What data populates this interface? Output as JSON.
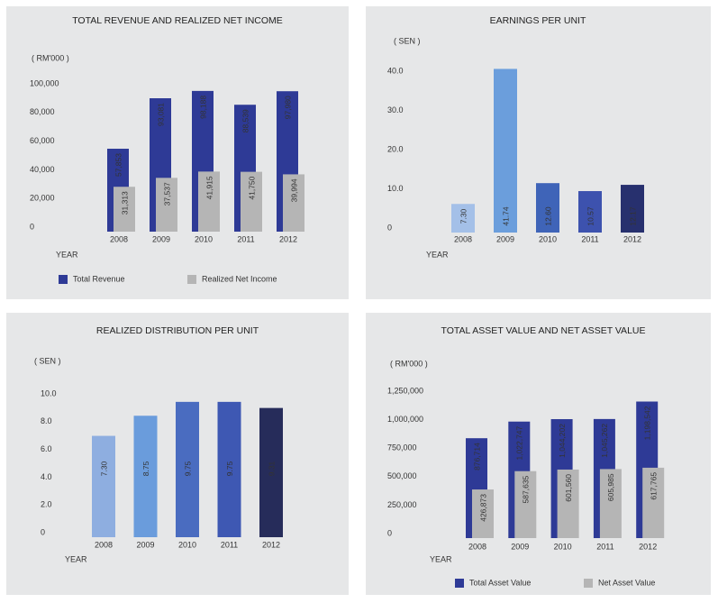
{
  "chart_data": [
    {
      "type": "bar",
      "title": "TOTAL REVENUE AND REALIZED NET INCOME",
      "unit_label": "( RM'000 )",
      "x_label": "YEAR",
      "categories": [
        "2008",
        "2009",
        "2010",
        "2011",
        "2012"
      ],
      "series": [
        {
          "name": "Total Revenue",
          "color": "#2e3a96",
          "values": [
            57853,
            93081,
            98188,
            88539,
            97980
          ],
          "value_labels": [
            "57,853",
            "93,081",
            "98,188",
            "88,539",
            "97,980"
          ]
        },
        {
          "name": "Realized Net Income",
          "color": "#b5b5b5",
          "values": [
            31313,
            37537,
            41915,
            41750,
            39994
          ],
          "value_labels": [
            "31,313",
            "37,537",
            "41,915",
            "41,750",
            "39,994"
          ]
        }
      ],
      "ylim": [
        0,
        100000
      ],
      "yticks": [
        0,
        {
          "value": 20000,
          "label": "20,000"
        },
        {
          "value": 40000,
          "label": "40,000"
        },
        {
          "value": 60000,
          "label": "60,000"
        },
        {
          "value": 80000,
          "label": "80,000"
        },
        {
          "value": 100000,
          "label": "100,000"
        }
      ],
      "grid": false
    },
    {
      "type": "bar",
      "title": "EARNINGS PER UNIT",
      "unit_label": "( SEN )",
      "x_label": "YEAR",
      "categories": [
        "2008",
        "2009",
        "2010",
        "2011",
        "2012"
      ],
      "values": [
        7.3,
        41.74,
        12.6,
        10.57,
        12.17
      ],
      "value_labels": [
        "7.30",
        "41.74",
        "12.60",
        "10.57",
        "12.17"
      ],
      "colors": [
        "#a4c0e8",
        "#6b9edc",
        "#3f64b8",
        "#3d52ae",
        "#27306e"
      ],
      "ylim": [
        0,
        40
      ],
      "yticks": [
        0,
        {
          "value": 10,
          "label": "10.0"
        },
        {
          "value": 20,
          "label": "20.0"
        },
        {
          "value": 30,
          "label": "30.0"
        },
        {
          "value": 40,
          "label": "40.0"
        }
      ],
      "grid": false
    },
    {
      "type": "bar",
      "title": "REALIZED DISTRIBUTION PER UNIT",
      "unit_label": "( SEN )",
      "x_label": "YEAR",
      "categories": [
        "2008",
        "2009",
        "2010",
        "2011",
        "2012"
      ],
      "values": [
        7.3,
        8.75,
        9.75,
        9.75,
        9.31
      ],
      "value_labels": [
        "7.30",
        "8.75",
        "9.75",
        "9.75",
        "9.31"
      ],
      "colors": [
        "#8eaee0",
        "#6a9cdc",
        "#4a6cc0",
        "#3e58b3",
        "#262c5a"
      ],
      "ylim": [
        0,
        10
      ],
      "yticks": [
        0,
        {
          "value": 2,
          "label": "2.0"
        },
        {
          "value": 4,
          "label": "4.0"
        },
        {
          "value": 6,
          "label": "6.0"
        },
        {
          "value": 8,
          "label": "8.0"
        },
        {
          "value": 10,
          "label": "10.0"
        }
      ],
      "grid": false
    },
    {
      "type": "bar",
      "title": "TOTAL ASSET VALUE AND NET ASSET VALUE",
      "unit_label": "( RM'000 )",
      "x_label": "YEAR",
      "categories": [
        "2008",
        "2009",
        "2010",
        "2011",
        "2012"
      ],
      "series": [
        {
          "name": "Total Asset Value",
          "color": "#2e3a96",
          "values": [
            876714,
            1022747,
            1044202,
            1045262,
            1198542
          ],
          "value_labels": [
            "876,714",
            "1,022,747",
            "1,044,202",
            "1,045,262",
            "1,198,542"
          ]
        },
        {
          "name": "Net Asset Value",
          "color": "#b5b5b5",
          "values": [
            426873,
            587635,
            601560,
            605985,
            617765
          ],
          "value_labels": [
            "426,873",
            "587,635",
            "601,560",
            "605,985",
            "617,765"
          ]
        }
      ],
      "ylim": [
        0,
        1250000
      ],
      "yticks": [
        0,
        {
          "value": 250000,
          "label": "250,000"
        },
        {
          "value": 500000,
          "label": "500,000"
        },
        {
          "value": 750000,
          "label": "750,000"
        },
        {
          "value": 1000000,
          "label": "1,000,000"
        },
        {
          "value": 1250000,
          "label": "1,250,000"
        }
      ],
      "grid": false
    }
  ]
}
